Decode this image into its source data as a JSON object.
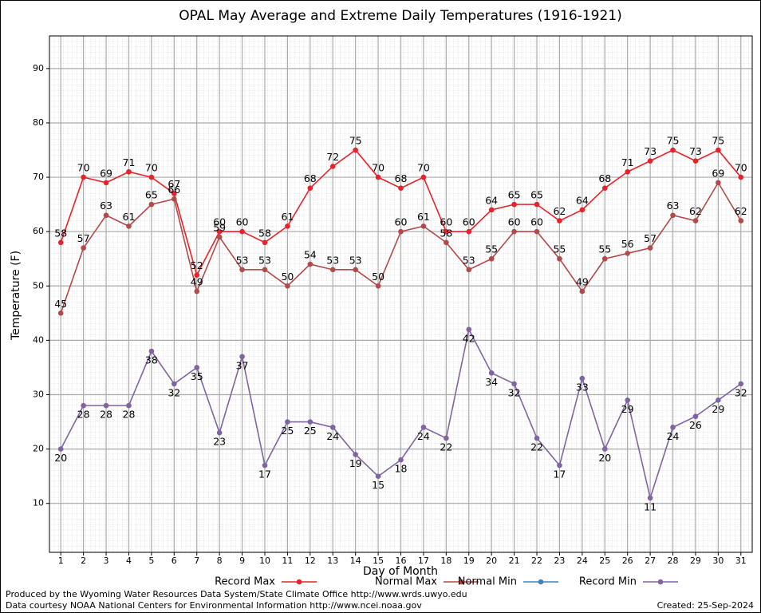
{
  "chart_data": {
    "type": "line",
    "title": "OPAL May Average and Extreme Daily Temperatures (1916-1921)",
    "x_label": "Day of Month",
    "y_label": "Temperature (F)",
    "x": [
      1,
      2,
      3,
      4,
      5,
      6,
      7,
      8,
      9,
      10,
      11,
      12,
      13,
      14,
      15,
      16,
      17,
      18,
      19,
      20,
      21,
      22,
      23,
      24,
      25,
      26,
      27,
      28,
      29,
      30,
      31
    ],
    "xlim": [
      0.5,
      31.5
    ],
    "ylim": [
      1,
      96
    ],
    "yticks": [
      10,
      20,
      30,
      40,
      50,
      60,
      70,
      80,
      90
    ],
    "grid": true,
    "series": [
      {
        "name": "Record Max",
        "color": "#e8222a",
        "label_side": "above",
        "values": [
          58,
          70,
          69,
          71,
          70,
          67,
          52,
          60,
          60,
          58,
          61,
          68,
          72,
          75,
          70,
          68,
          70,
          60,
          60,
          64,
          65,
          65,
          62,
          64,
          68,
          71,
          73,
          75,
          73,
          75,
          70
        ]
      },
      {
        "name": "Normal Max",
        "color": "#b24a4a",
        "label_side": "above",
        "values": [
          45,
          57,
          63,
          61,
          65,
          66,
          49,
          59,
          53,
          53,
          50,
          54,
          53,
          53,
          50,
          60,
          61,
          58,
          53,
          55,
          60,
          60,
          55,
          49,
          55,
          56,
          57,
          63,
          62,
          69,
          62
        ]
      },
      {
        "name": "Normal Min",
        "color": "#4682b4",
        "label_side": "below",
        "values": [
          null,
          null,
          null,
          null,
          null,
          null,
          null,
          null,
          null,
          null,
          null,
          null,
          null,
          null,
          null,
          null,
          null,
          null,
          null,
          null,
          null,
          null,
          null,
          null,
          null,
          null,
          null,
          null,
          null,
          null,
          null
        ]
      },
      {
        "name": "Record Min",
        "color": "#8064a2",
        "label_side": "below",
        "values": [
          20,
          28,
          28,
          28,
          38,
          32,
          35,
          23,
          37,
          17,
          25,
          25,
          24,
          19,
          15,
          18,
          24,
          22,
          42,
          34,
          32,
          22,
          17,
          33,
          20,
          29,
          11,
          24,
          26,
          29,
          32
        ]
      }
    ],
    "footer_left_1": "Produced by the Wyoming Water Resources Data System/State Climate Office http://www.wrds.uwyo.edu",
    "footer_left_2": "Data courtesy NOAA National Centers for Environmental Information http://www.ncei.noaa.gov",
    "footer_right": "Created:  25-Sep-2024"
  }
}
